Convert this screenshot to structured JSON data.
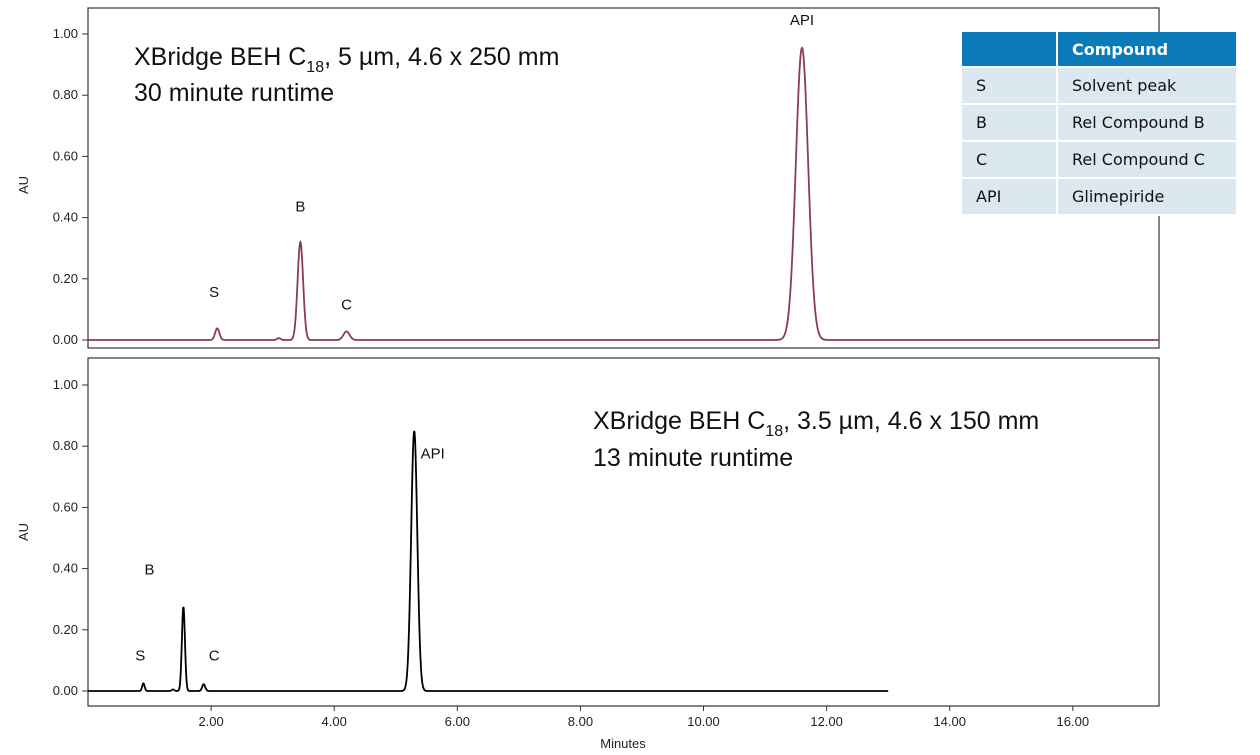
{
  "chart_data": [
    {
      "type": "line",
      "annotation_line1": "XBridge BEH C",
      "annotation_sub": "18",
      "annotation_line1_rest": ", 5 µm, 4.6 x 250 mm",
      "annotation_line2": "30 minute runtime",
      "ylabel": "AU",
      "xlabel": "",
      "xlim": [
        0,
        17.4
      ],
      "ylim": [
        -0.02,
        1.08
      ],
      "yticks": [
        "0.00",
        "0.20",
        "0.40",
        "0.60",
        "0.80",
        "1.00"
      ],
      "ytick_values": [
        0,
        0.2,
        0.4,
        0.6,
        0.8,
        1.0
      ],
      "line_color": "#8a3a5c",
      "trace_end": 17.4,
      "peaks": [
        {
          "label": "S",
          "x": 2.1,
          "height": 0.038,
          "width": 0.035
        },
        {
          "label": "",
          "x": 3.1,
          "height": 0.006,
          "width": 0.03
        },
        {
          "label": "B",
          "x": 3.45,
          "height": 0.32,
          "width": 0.045
        },
        {
          "label": "C",
          "x": 4.2,
          "height": 0.028,
          "width": 0.05
        },
        {
          "label": "API",
          "x": 11.6,
          "height": 0.955,
          "width": 0.1
        }
      ],
      "label_positions": [
        {
          "label": "S",
          "x": 2.05,
          "y": 0.14
        },
        {
          "label": "B",
          "x": 3.45,
          "y": 0.42
        },
        {
          "label": "C",
          "x": 4.2,
          "y": 0.1
        },
        {
          "label": "API",
          "x": 11.6,
          "y": 1.03
        }
      ]
    },
    {
      "type": "line",
      "annotation_line1": "XBridge BEH C",
      "annotation_sub": "18",
      "annotation_line1_rest": ", 3.5 µm, 4.6 x 150 mm",
      "annotation_line2": "13 minute runtime",
      "ylabel": "AU",
      "xlabel": "Minutes",
      "xlim": [
        0,
        17.4
      ],
      "ylim": [
        -0.02,
        1.08
      ],
      "xticks": [
        "2.00",
        "4.00",
        "6.00",
        "8.00",
        "10.00",
        "12.00",
        "14.00",
        "16.00"
      ],
      "xtick_values": [
        2,
        4,
        6,
        8,
        10,
        12,
        14,
        16
      ],
      "yticks": [
        "0.00",
        "0.20",
        "0.40",
        "0.60",
        "0.80",
        "1.00"
      ],
      "ytick_values": [
        0,
        0.2,
        0.4,
        0.6,
        0.8,
        1.0
      ],
      "line_color": "#000000",
      "trace_end": 13.0,
      "peaks": [
        {
          "label": "S",
          "x": 0.9,
          "height": 0.025,
          "width": 0.02
        },
        {
          "label": "",
          "x": 1.38,
          "height": 0.005,
          "width": 0.02
        },
        {
          "label": "B",
          "x": 1.55,
          "height": 0.275,
          "width": 0.025
        },
        {
          "label": "C",
          "x": 1.88,
          "height": 0.022,
          "width": 0.025
        },
        {
          "label": "API",
          "x": 5.3,
          "height": 0.85,
          "width": 0.05
        }
      ],
      "label_positions": [
        {
          "label": "S",
          "x": 0.85,
          "y": 0.1
        },
        {
          "label": "B",
          "x": 1.0,
          "y": 0.38
        },
        {
          "label": "C",
          "x": 2.05,
          "y": 0.1
        },
        {
          "label": "API",
          "x": 5.6,
          "y": 0.76
        }
      ]
    }
  ],
  "legend_table": {
    "header": [
      "",
      "Compound"
    ],
    "rows": [
      [
        "S",
        "Solvent peak"
      ],
      [
        "B",
        "Rel Compound B"
      ],
      [
        "C",
        "Rel Compound C"
      ],
      [
        "API",
        "Glimepiride"
      ]
    ]
  }
}
